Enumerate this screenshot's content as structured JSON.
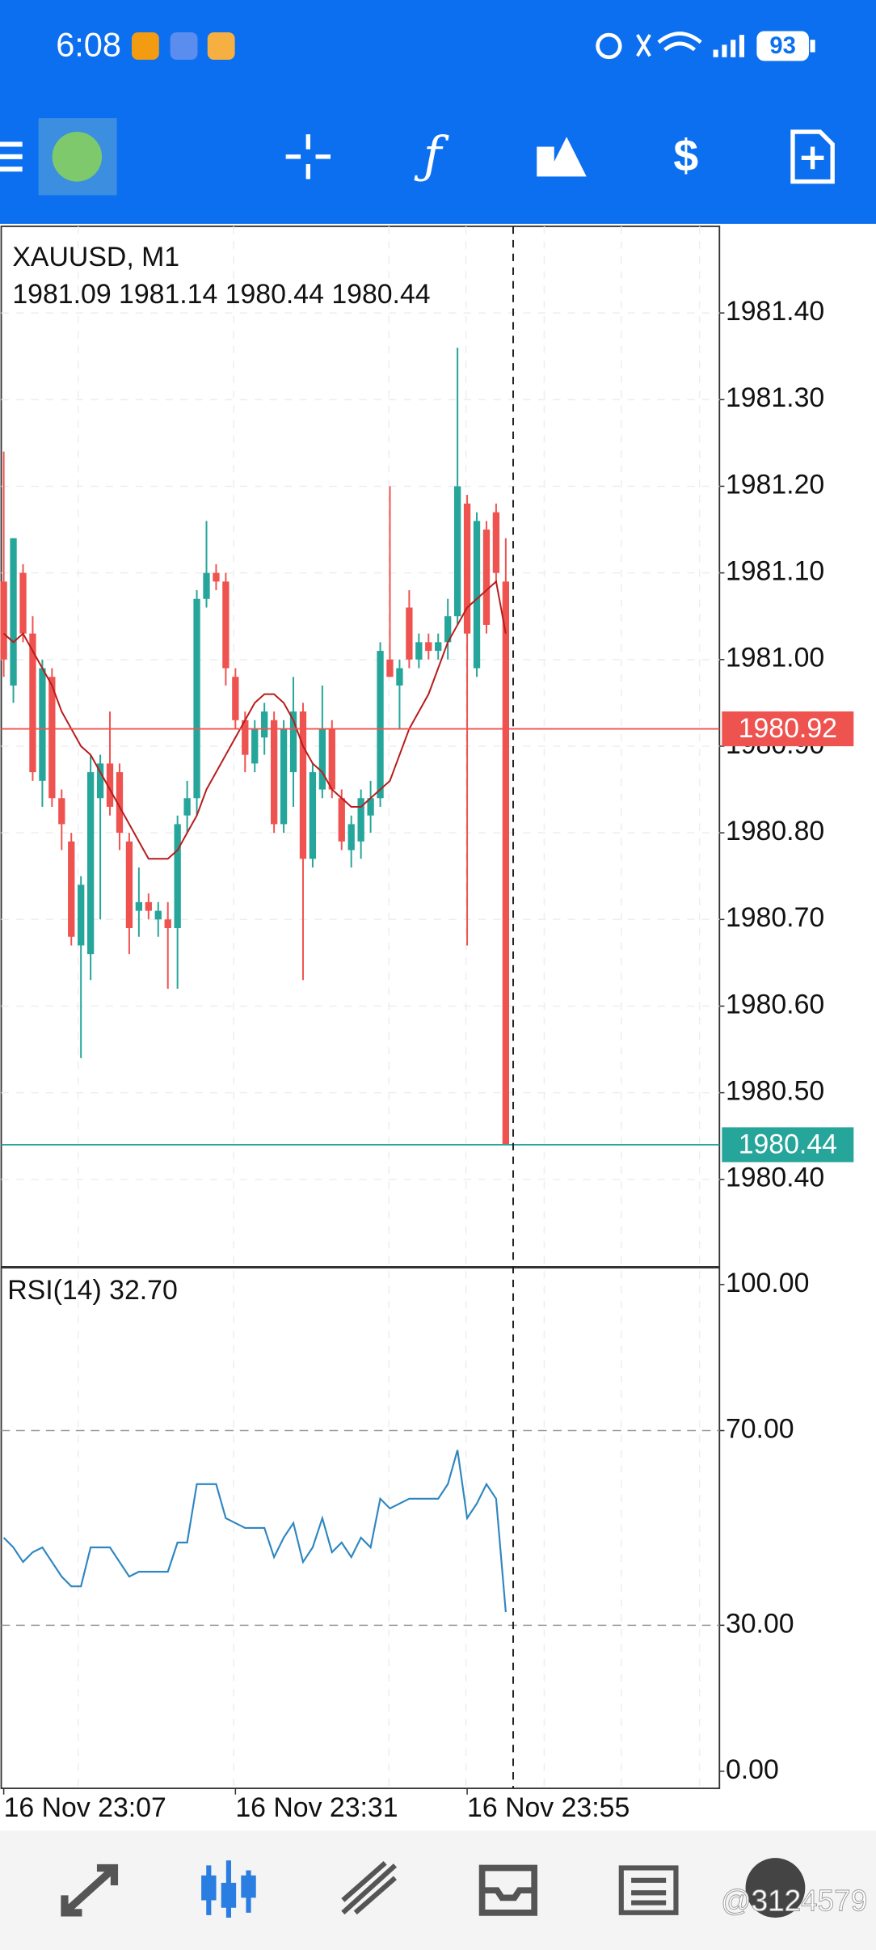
{
  "status_bar": {
    "time": "6:08",
    "battery": "93"
  },
  "chart_data": [
    {
      "type": "candlestick",
      "title": "XAUUSD, M1",
      "ohlc_text": "1981.09 1981.14 1980.44 1980.44",
      "categories": [
        "16 Nov 23:07",
        null,
        null,
        null,
        null,
        null,
        null,
        null,
        null,
        null,
        null,
        null,
        null,
        null,
        null,
        null,
        null,
        null,
        null,
        null,
        null,
        null,
        null,
        null,
        "16 Nov 23:31",
        null,
        null,
        null,
        null,
        null,
        null,
        null,
        null,
        null,
        null,
        null,
        null,
        null,
        null,
        null,
        null,
        null,
        null,
        null,
        null,
        null,
        null,
        null,
        "16 Nov 23:55",
        null,
        null,
        null,
        null
      ],
      "open": [
        1981.09,
        1980.97,
        1981.1,
        1981.03,
        1980.86,
        1980.98,
        1980.84,
        1980.79,
        1980.67,
        1980.66,
        1980.84,
        1980.88,
        1980.87,
        1980.79,
        1980.71,
        1980.72,
        1980.7,
        1980.7,
        1980.69,
        1980.82,
        1980.84,
        1981.07,
        1981.1,
        1981.09,
        1980.98,
        1980.93,
        1980.88,
        1980.91,
        1980.93,
        1980.81,
        1980.87,
        1980.94,
        1980.77,
        1980.85,
        1980.92,
        1980.84,
        1980.78,
        1980.79,
        1980.82,
        1980.84,
        1981.0,
        1980.97,
        1981.06,
        1981.0,
        1981.02,
        1981.01,
        1981.02,
        1981.05,
        1981.18,
        1980.99,
        1981.15,
        1981.17,
        1981.09
      ],
      "high": [
        1981.24,
        1981.14,
        1981.11,
        1981.05,
        1981.0,
        1980.99,
        1980.85,
        1980.8,
        1980.75,
        1980.89,
        1980.89,
        1980.94,
        1980.88,
        1980.8,
        1980.76,
        1980.73,
        1980.72,
        1980.72,
        1980.82,
        1980.86,
        1981.08,
        1981.16,
        1981.11,
        1981.1,
        1980.99,
        1980.94,
        1980.93,
        1980.95,
        1980.94,
        1980.93,
        1980.98,
        1980.95,
        1980.88,
        1980.97,
        1980.93,
        1980.85,
        1980.82,
        1980.85,
        1980.86,
        1981.02,
        1981.2,
        1981.0,
        1981.08,
        1981.03,
        1981.03,
        1981.03,
        1981.07,
        1981.36,
        1981.19,
        1981.17,
        1981.16,
        1981.18,
        1981.14
      ],
      "low": [
        1980.98,
        1980.95,
        1981.02,
        1980.86,
        1980.83,
        1980.83,
        1980.78,
        1980.67,
        1980.54,
        1980.63,
        1980.7,
        1980.82,
        1980.78,
        1980.66,
        1980.68,
        1980.7,
        1980.68,
        1980.62,
        1980.62,
        1980.8,
        1980.82,
        1981.06,
        1981.08,
        1980.97,
        1980.92,
        1980.87,
        1980.87,
        1980.89,
        1980.8,
        1980.8,
        1980.83,
        1980.63,
        1980.76,
        1980.84,
        1980.84,
        1980.78,
        1980.76,
        1980.77,
        1980.8,
        1980.83,
        1980.98,
        1980.92,
        1980.99,
        1980.99,
        1981.0,
        1981.0,
        1981.0,
        1981.04,
        1980.67,
        1980.98,
        1981.03,
        1981.09,
        1980.44
      ],
      "close": [
        1981.0,
        1981.14,
        1981.03,
        1980.87,
        1980.99,
        1980.84,
        1980.81,
        1980.68,
        1980.74,
        1980.87,
        1980.88,
        1980.83,
        1980.8,
        1980.69,
        1980.72,
        1980.71,
        1980.71,
        1980.69,
        1980.81,
        1980.84,
        1981.07,
        1981.1,
        1981.09,
        1980.99,
        1980.93,
        1980.89,
        1980.92,
        1980.94,
        1980.81,
        1980.92,
        1980.94,
        1980.77,
        1980.87,
        1980.92,
        1980.85,
        1980.79,
        1980.81,
        1980.84,
        1980.84,
        1981.01,
        1980.98,
        1980.99,
        1981.0,
        1981.02,
        1981.01,
        1981.02,
        1981.05,
        1981.2,
        1981.03,
        1981.16,
        1981.04,
        1981.1,
        1980.44
      ],
      "up_color": "#26a69a",
      "down_color": "#ef5350",
      "ma": {
        "color": "#b71c1c",
        "values": [
          1981.03,
          1981.02,
          1981.03,
          1981.01,
          1980.99,
          1980.97,
          1980.94,
          1980.92,
          1980.9,
          1980.89,
          1980.87,
          1980.85,
          1980.83,
          1980.81,
          1980.79,
          1980.77,
          1980.77,
          1980.77,
          1980.78,
          1980.8,
          1980.82,
          1980.85,
          1980.87,
          1980.89,
          1980.91,
          1980.93,
          1980.95,
          1980.96,
          1980.96,
          1980.95,
          1980.93,
          1980.9,
          1980.88,
          1980.87,
          1980.85,
          1980.84,
          1980.83,
          1980.83,
          1980.84,
          1980.85,
          1980.86,
          1980.89,
          1980.92,
          1980.94,
          1980.96,
          1980.99,
          1981.02,
          1981.04,
          1981.06,
          1981.07,
          1981.08,
          1981.09,
          1981.03
        ]
      },
      "price_lines": [
        {
          "value": 1980.92,
          "color": "#ef5350"
        },
        {
          "value": 1980.44,
          "color": "#26a69a"
        }
      ],
      "ylim": [
        1980.3,
        1981.5
      ],
      "yticks": [
        {
          "value": 1980.4,
          "label": "1980.40"
        },
        {
          "value": 1980.5,
          "label": "1980.50"
        },
        {
          "value": 1980.6,
          "label": "1980.60"
        },
        {
          "value": 1980.7,
          "label": "1980.70"
        },
        {
          "value": 1980.8,
          "label": "1980.80"
        },
        {
          "value": 1980.9,
          "label": "1980.90"
        },
        {
          "value": 1981.0,
          "label": "1981.00"
        },
        {
          "value": 1981.1,
          "label": "1981.10"
        },
        {
          "value": 1981.2,
          "label": "1981.20"
        },
        {
          "value": 1981.3,
          "label": "1981.30"
        },
        {
          "value": 1981.4,
          "label": "1981.40"
        }
      ],
      "grid": true
    },
    {
      "type": "line",
      "title": "RSI(14) 32.70",
      "color": "#2e86c1",
      "values": [
        48,
        46,
        43,
        45,
        46,
        43,
        40,
        38,
        38,
        46,
        46,
        46,
        43,
        40,
        41,
        41,
        41,
        41,
        47,
        47,
        59,
        59,
        59,
        52,
        51,
        50,
        50,
        50,
        44,
        48,
        51,
        43,
        46,
        52,
        45,
        47,
        44,
        48,
        46,
        56,
        54,
        55,
        56,
        56,
        56,
        56,
        59,
        66,
        52,
        55,
        59,
        56,
        32.7
      ],
      "ylim": [
        -3.5,
        103.3
      ],
      "yticks": [
        {
          "value": 0,
          "label": "0.00"
        },
        {
          "value": 30,
          "label": "30.00"
        },
        {
          "value": 70,
          "label": "70.00"
        },
        {
          "value": 100,
          "label": "100.00"
        }
      ],
      "levels": [
        30,
        70
      ]
    }
  ],
  "watermark": "@3124579"
}
